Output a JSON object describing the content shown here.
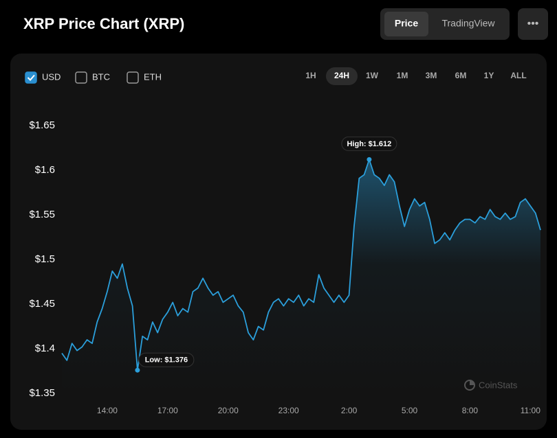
{
  "ui": {
    "tabs": [
      {
        "label": "Price",
        "active": true
      },
      {
        "label": "TradingView",
        "active": false
      }
    ],
    "menu": "•••",
    "currencies": [
      {
        "label": "USD",
        "checked": true
      },
      {
        "label": "BTC",
        "checked": false
      },
      {
        "label": "ETH",
        "checked": false
      }
    ],
    "ranges": [
      "1H",
      "24H",
      "1W",
      "1M",
      "3M",
      "6M",
      "1Y",
      "ALL"
    ],
    "active_range": 1,
    "watermark": "CoinStats"
  },
  "chart_data": {
    "type": "line",
    "title": "XRP Price Chart (XRP)",
    "color": "#2b9fdb",
    "values": [
      1.395,
      1.387,
      1.406,
      1.398,
      1.402,
      1.41,
      1.406,
      1.43,
      1.445,
      1.464,
      1.487,
      1.479,
      1.495,
      1.468,
      1.448,
      1.376,
      1.414,
      1.41,
      1.43,
      1.418,
      1.433,
      1.441,
      1.452,
      1.437,
      1.445,
      1.441,
      1.464,
      1.468,
      1.479,
      1.468,
      1.46,
      1.464,
      1.452,
      1.456,
      1.46,
      1.448,
      1.441,
      1.418,
      1.41,
      1.425,
      1.421,
      1.441,
      1.452,
      1.456,
      1.448,
      1.456,
      1.452,
      1.46,
      1.448,
      1.456,
      1.452,
      1.483,
      1.468,
      1.46,
      1.452,
      1.46,
      1.452,
      1.46,
      1.537,
      1.591,
      1.595,
      1.612,
      1.595,
      1.591,
      1.583,
      1.595,
      1.587,
      1.56,
      1.537,
      1.556,
      1.568,
      1.56,
      1.564,
      1.545,
      1.518,
      1.522,
      1.53,
      1.522,
      1.533,
      1.541,
      1.545,
      1.545,
      1.541,
      1.548,
      1.545,
      1.556,
      1.548,
      1.545,
      1.552,
      1.545,
      1.548,
      1.564,
      1.568,
      1.56,
      1.552,
      1.533
    ],
    "xlim": [
      0,
      95
    ],
    "xticks": [
      {
        "value": 9,
        "label": "14:00"
      },
      {
        "value": 21,
        "label": "17:00"
      },
      {
        "value": 33,
        "label": "20:00"
      },
      {
        "value": 45,
        "label": "23:00"
      },
      {
        "value": 57,
        "label": "2:00"
      },
      {
        "value": 69,
        "label": "5:00"
      },
      {
        "value": 81,
        "label": "8:00"
      },
      {
        "value": 93,
        "label": "11:00"
      }
    ],
    "ylim": [
      1.35,
      1.65
    ],
    "yticks": [
      {
        "value": 1.35,
        "label": "$1.35"
      },
      {
        "value": 1.4,
        "label": "$1.4"
      },
      {
        "value": 1.45,
        "label": "$1.45"
      },
      {
        "value": 1.5,
        "label": "$1.5"
      },
      {
        "value": 1.55,
        "label": "$1.55"
      },
      {
        "value": 1.6,
        "label": "$1.6"
      },
      {
        "value": 1.65,
        "label": "$1.65"
      }
    ],
    "annotations": {
      "high": "High: $1.612",
      "low": "Low: $1.376"
    }
  }
}
